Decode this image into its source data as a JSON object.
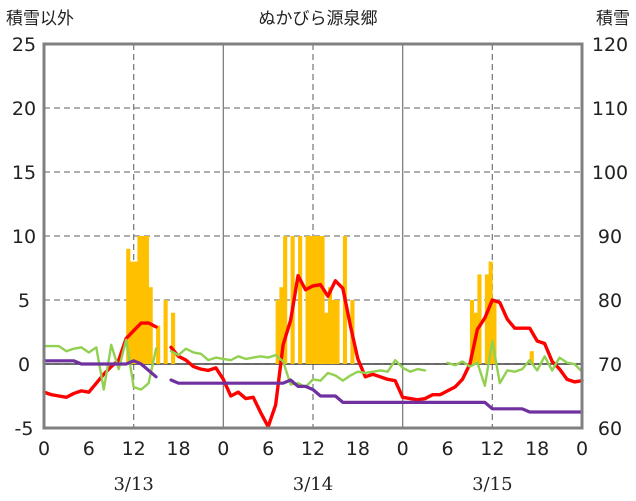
{
  "chart_data": {
    "type": "bar+line",
    "title": "ぬかびら源泉郷",
    "left_axis": {
      "label": "積雪以外",
      "min": -5,
      "max": 25,
      "ticks": [
        -5,
        0,
        5,
        10,
        15,
        20,
        25
      ]
    },
    "right_axis": {
      "label": "積雪",
      "min": 60,
      "max": 120,
      "ticks": [
        60,
        70,
        80,
        90,
        100,
        110,
        120
      ]
    },
    "x_axis": {
      "unit": "hour",
      "min": 0,
      "max": 72,
      "tick_labels": [
        {
          "x": 0,
          "label": "0"
        },
        {
          "x": 6,
          "label": "6"
        },
        {
          "x": 12,
          "label": "12"
        },
        {
          "x": 18,
          "label": "18"
        },
        {
          "x": 24,
          "label": "0"
        },
        {
          "x": 30,
          "label": "6"
        },
        {
          "x": 36,
          "label": "12"
        },
        {
          "x": 42,
          "label": "18"
        },
        {
          "x": 48,
          "label": "0"
        },
        {
          "x": 54,
          "label": "6"
        },
        {
          "x": 60,
          "label": "12"
        },
        {
          "x": 66,
          "label": "18"
        },
        {
          "x": 72,
          "label": "0"
        }
      ],
      "date_labels": [
        {
          "x": 12,
          "label": "3/13"
        },
        {
          "x": 36,
          "label": "3/14"
        },
        {
          "x": 60,
          "label": "3/15"
        }
      ]
    },
    "grid": {
      "horizontal": "dashed",
      "vertical": [
        {
          "x": 12,
          "style": "dashed"
        },
        {
          "x": 24,
          "style": "solid"
        },
        {
          "x": 36,
          "style": "dashed"
        },
        {
          "x": 48,
          "style": "solid"
        },
        {
          "x": 60,
          "style": "dashed"
        }
      ]
    },
    "colors": {
      "bars": "#FFC000",
      "red": "#FF0000",
      "green": "#92D050",
      "purple": "#7030A0",
      "frame": "#808080",
      "grid": "#7f7f7f"
    },
    "series": [
      {
        "type": "bar",
        "axis": "left",
        "color": "#FFC000",
        "values": [
          [
            11,
            9
          ],
          [
            11.5,
            8
          ],
          [
            12,
            8
          ],
          [
            12.5,
            10
          ],
          [
            13,
            10
          ],
          [
            13.5,
            10
          ],
          [
            14,
            6
          ],
          [
            15,
            3
          ],
          [
            16,
            5
          ],
          [
            17,
            4
          ],
          [
            31,
            5
          ],
          [
            31.5,
            6
          ],
          [
            32,
            10
          ],
          [
            33,
            10
          ],
          [
            34,
            10
          ],
          [
            35,
            10
          ],
          [
            35.5,
            10
          ],
          [
            36,
            10
          ],
          [
            36.5,
            10
          ],
          [
            37,
            10
          ],
          [
            37.5,
            4
          ],
          [
            38,
            6
          ],
          [
            38.5,
            5
          ],
          [
            39,
            5
          ],
          [
            40,
            10
          ],
          [
            41,
            5
          ],
          [
            57,
            5
          ],
          [
            57.5,
            4
          ],
          [
            58,
            7
          ],
          [
            59,
            7
          ],
          [
            59.5,
            8
          ],
          [
            60,
            5
          ],
          [
            65,
            1
          ]
        ]
      },
      {
        "type": "line",
        "axis": "left",
        "color": "#FF0000",
        "points": [
          [
            0,
            -2.2
          ],
          [
            1,
            -2.4
          ],
          [
            2,
            -2.5
          ],
          [
            3,
            -2.6
          ],
          [
            4,
            -2.3
          ],
          [
            5,
            -2.1
          ],
          [
            6,
            -2.2
          ],
          [
            7,
            -1.5
          ],
          [
            8,
            -0.8
          ],
          [
            9,
            -0.2
          ],
          [
            10,
            0.3
          ],
          [
            11,
            2.0
          ],
          [
            12,
            2.6
          ],
          [
            13,
            3.2
          ],
          [
            14,
            3.2
          ],
          [
            15,
            2.9
          ],
          null,
          [
            17,
            1.3
          ],
          [
            18,
            0.6
          ],
          [
            19,
            0.3
          ],
          [
            20,
            -0.2
          ],
          [
            21,
            -0.4
          ],
          [
            22,
            -0.5
          ],
          [
            23,
            -0.3
          ],
          [
            24,
            -1.2
          ],
          [
            25,
            -2.5
          ],
          [
            26,
            -2.2
          ],
          [
            27,
            -2.7
          ],
          [
            28,
            -2.6
          ],
          [
            29,
            -3.8
          ],
          [
            30,
            -4.9
          ],
          [
            31,
            -3.2
          ],
          [
            32,
            1.5
          ],
          [
            33,
            3.4
          ],
          [
            34,
            6.9
          ],
          [
            35,
            5.8
          ],
          [
            36,
            6.1
          ],
          [
            37,
            6.2
          ],
          [
            38,
            5.3
          ],
          [
            39,
            6.5
          ],
          [
            40,
            5.9
          ],
          [
            41,
            3.0
          ],
          [
            42,
            0.4
          ],
          [
            43,
            -1.0
          ],
          [
            44,
            -0.8
          ],
          [
            45,
            -1.0
          ],
          [
            46,
            -1.2
          ],
          [
            47,
            -1.3
          ],
          [
            48,
            -2.6
          ],
          [
            49,
            -2.7
          ],
          [
            50,
            -2.8
          ],
          [
            51,
            -2.7
          ],
          [
            52,
            -2.4
          ],
          [
            53,
            -2.4
          ],
          [
            54,
            -2.1
          ],
          [
            55,
            -1.8
          ],
          [
            56,
            -1.2
          ],
          [
            57,
            0.0
          ],
          [
            58,
            2.7
          ],
          [
            59,
            3.6
          ],
          [
            60,
            5.0
          ],
          [
            61,
            4.8
          ],
          [
            62,
            3.5
          ],
          [
            63,
            2.8
          ],
          [
            64,
            2.8
          ],
          [
            65,
            2.8
          ],
          [
            66,
            1.8
          ],
          [
            67,
            1.6
          ],
          [
            68,
            0.2
          ],
          [
            69,
            -0.4
          ],
          [
            70,
            -1.2
          ],
          [
            71,
            -1.4
          ],
          [
            72,
            -1.3
          ]
        ]
      },
      {
        "type": "line",
        "axis": "left",
        "color": "#92D050",
        "points": [
          [
            0,
            1.4
          ],
          [
            1,
            1.4
          ],
          [
            2,
            1.4
          ],
          [
            3,
            1.0
          ],
          [
            4,
            1.2
          ],
          [
            5,
            1.3
          ],
          [
            6,
            0.9
          ],
          [
            7,
            1.3
          ],
          [
            8,
            -2.0
          ],
          [
            9,
            1.5
          ],
          [
            10,
            -0.4
          ],
          [
            11,
            1.9
          ],
          [
            12,
            -1.8
          ],
          [
            13,
            -2.0
          ],
          [
            14,
            -1.5
          ],
          [
            15,
            1.2
          ],
          null,
          [
            17,
            1.0
          ],
          [
            18,
            0.7
          ],
          [
            19,
            1.2
          ],
          [
            20,
            0.9
          ],
          [
            21,
            0.8
          ],
          [
            22,
            0.3
          ],
          [
            23,
            0.5
          ],
          [
            24,
            0.4
          ],
          [
            25,
            0.3
          ],
          [
            26,
            0.6
          ],
          [
            27,
            0.4
          ],
          [
            28,
            0.5
          ],
          [
            29,
            0.6
          ],
          [
            30,
            0.5
          ],
          [
            31,
            0.7
          ],
          [
            32,
            0.2
          ],
          [
            33,
            -1.6
          ],
          [
            34,
            -1.5
          ],
          [
            35,
            -1.8
          ],
          [
            36,
            -1.2
          ],
          [
            37,
            -1.3
          ],
          [
            38,
            -0.7
          ],
          [
            39,
            -0.9
          ],
          [
            40,
            -1.3
          ],
          [
            41,
            -0.9
          ],
          [
            42,
            -0.6
          ],
          [
            43,
            -0.7
          ],
          [
            44,
            -0.6
          ],
          [
            45,
            -0.5
          ],
          [
            46,
            -0.6
          ],
          [
            47,
            0.3
          ],
          [
            48,
            -0.3
          ],
          [
            49,
            -0.6
          ],
          [
            50,
            -0.4
          ],
          [
            51,
            -0.5
          ],
          null,
          [
            54,
            0.1
          ],
          [
            55,
            -0.1
          ],
          [
            56,
            0.2
          ],
          [
            57,
            -0.2
          ],
          [
            58,
            0.1
          ],
          [
            59,
            -1.7
          ],
          [
            60,
            1.8
          ],
          [
            61,
            -1.5
          ],
          [
            62,
            -0.5
          ],
          [
            63,
            -0.6
          ],
          [
            64,
            -0.4
          ],
          [
            65,
            0.3
          ],
          [
            66,
            -0.5
          ],
          [
            67,
            0.6
          ],
          [
            68,
            -0.5
          ],
          [
            69,
            0.5
          ],
          [
            70,
            0.1
          ],
          [
            71,
            0.0
          ],
          [
            72,
            -0.6
          ]
        ]
      },
      {
        "type": "line",
        "axis": "right",
        "color": "#7030A0",
        "points": [
          [
            0,
            70.5
          ],
          [
            1,
            70.5
          ],
          [
            2,
            70.5
          ],
          [
            3,
            70.5
          ],
          [
            4,
            70.5
          ],
          [
            5,
            70
          ],
          [
            6,
            70
          ],
          [
            7,
            70
          ],
          [
            8,
            70
          ],
          [
            9,
            70
          ],
          [
            10,
            70
          ],
          [
            11,
            70
          ],
          [
            12,
            70.5
          ],
          [
            13,
            70
          ],
          [
            14,
            69
          ],
          [
            15,
            68
          ],
          null,
          [
            17,
            67.5
          ],
          [
            18,
            67
          ],
          [
            19,
            67
          ],
          [
            20,
            67
          ],
          [
            21,
            67
          ],
          [
            22,
            67
          ],
          [
            23,
            67
          ],
          [
            24,
            67
          ],
          [
            25,
            67
          ],
          [
            26,
            67
          ],
          [
            27,
            67
          ],
          [
            28,
            67
          ],
          [
            29,
            67
          ],
          [
            30,
            67
          ],
          [
            31,
            67
          ],
          [
            32,
            67
          ],
          [
            33,
            67.5
          ],
          [
            34,
            66.5
          ],
          [
            35,
            66.5
          ],
          [
            36,
            66
          ],
          [
            37,
            65
          ],
          [
            38,
            65
          ],
          [
            39,
            65
          ],
          [
            40,
            64
          ],
          [
            41,
            64
          ],
          [
            42,
            64
          ],
          [
            43,
            64
          ],
          [
            44,
            64
          ],
          [
            45,
            64
          ],
          [
            46,
            64
          ],
          [
            47,
            64
          ],
          [
            48,
            64
          ],
          [
            49,
            64
          ],
          [
            50,
            64
          ],
          [
            51,
            64
          ],
          [
            52,
            64
          ],
          [
            53,
            64
          ],
          [
            54,
            64
          ],
          [
            55,
            64
          ],
          [
            56,
            64
          ],
          [
            57,
            64
          ],
          [
            58,
            64
          ],
          [
            59,
            64
          ],
          [
            60,
            63
          ],
          [
            61,
            63
          ],
          [
            62,
            63
          ],
          [
            63,
            63
          ],
          [
            64,
            63
          ],
          [
            65,
            62.5
          ],
          [
            66,
            62.5
          ],
          [
            67,
            62.5
          ],
          [
            68,
            62.5
          ],
          [
            69,
            62.5
          ],
          [
            70,
            62.5
          ],
          [
            71,
            62.5
          ],
          [
            72,
            62.5
          ]
        ]
      }
    ]
  }
}
